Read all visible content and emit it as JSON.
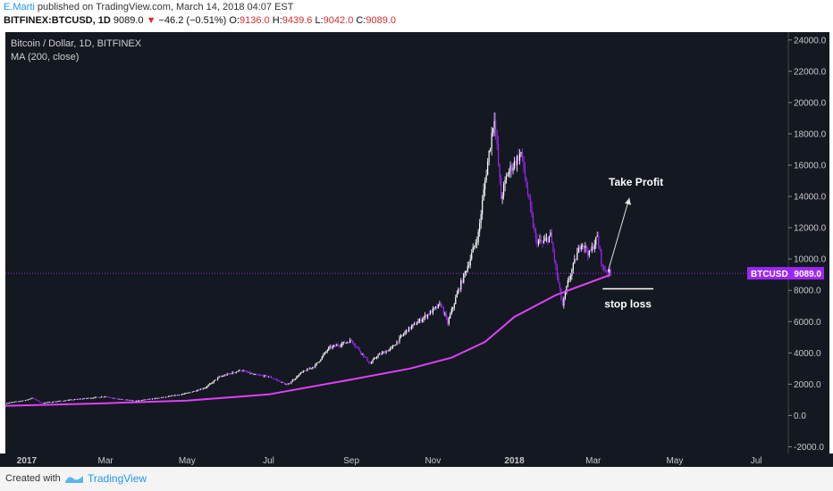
{
  "header": {
    "author": "E.Marti",
    "published_text": "published on TradingView.com, March 14, 2018 04:07 EST",
    "symbol": "BITFINEX:BTCUSD, 1D",
    "last_price": "9089.0",
    "change": "−46.2 (−0.51%)",
    "o_label": "O:",
    "o_value": "9136.0",
    "h_label": "H:",
    "h_value": "9439.6",
    "l_label": "L:",
    "l_value": "9042.0",
    "c_label": "C:",
    "c_value": "9089.0"
  },
  "footer": {
    "created_with": "Created with",
    "brand": "TradingView"
  },
  "colors": {
    "background": "#141821",
    "bull": "#ffffff",
    "bear": "#9c27f5",
    "ma": "#e040fb",
    "price_line": "#9c27f5"
  },
  "chart_data": {
    "type": "candlestick",
    "title": "Bitcoin / Dollar, 1D, BITFINEX",
    "indicator": "MA (200, close)",
    "ylim": [
      -3000,
      24500
    ],
    "yticks": [
      "24000.0",
      "22000.0",
      "20000.0",
      "18000.0",
      "16000.0",
      "14000.0",
      "12000.0",
      "10000.0",
      "8000.0",
      "6000.0",
      "4000.0",
      "2000.0",
      "0.0",
      "-2000.0"
    ],
    "xtick_labels": [
      "2017",
      "Mar",
      "May",
      "Jul",
      "Sep",
      "Nov",
      "2018",
      "Mar",
      "May",
      "Jul"
    ],
    "price_label": "BTCUSD",
    "price_value": "9089.0",
    "price": 9089,
    "price_series": [
      [
        "2016-12-16",
        780
      ],
      [
        "2017-01-01",
        990
      ],
      [
        "2017-01-05",
        1130
      ],
      [
        "2017-01-12",
        800
      ],
      [
        "2017-02-01",
        980
      ],
      [
        "2017-03-01",
        1220
      ],
      [
        "2017-03-10",
        1050
      ],
      [
        "2017-03-24",
        930
      ],
      [
        "2017-04-15",
        1180
      ],
      [
        "2017-05-01",
        1420
      ],
      [
        "2017-05-15",
        1800
      ],
      [
        "2017-05-25",
        2450
      ],
      [
        "2017-06-10",
        2900
      ],
      [
        "2017-06-20",
        2600
      ],
      [
        "2017-07-01",
        2500
      ],
      [
        "2017-07-15",
        1950
      ],
      [
        "2017-07-25",
        2700
      ],
      [
        "2017-08-05",
        3200
      ],
      [
        "2017-08-15",
        4300
      ],
      [
        "2017-09-01",
        4800
      ],
      [
        "2017-09-15",
        3300
      ],
      [
        "2017-09-20",
        3800
      ],
      [
        "2017-10-01",
        4300
      ],
      [
        "2017-10-12",
        5400
      ],
      [
        "2017-10-21",
        6000
      ],
      [
        "2017-11-07",
        7100
      ],
      [
        "2017-11-12",
        5900
      ],
      [
        "2017-11-20",
        8000
      ],
      [
        "2017-11-28",
        9800
      ],
      [
        "2017-12-05",
        11600
      ],
      [
        "2017-12-10",
        15000
      ],
      [
        "2017-12-17",
        19200
      ],
      [
        "2017-12-22",
        13900
      ],
      [
        "2017-12-27",
        15500
      ],
      [
        "2018-01-06",
        16800
      ],
      [
        "2018-01-12",
        13600
      ],
      [
        "2018-01-17",
        11200
      ],
      [
        "2018-01-22",
        11000
      ],
      [
        "2018-01-28",
        11500
      ],
      [
        "2018-02-02",
        8900
      ],
      [
        "2018-02-06",
        7000
      ],
      [
        "2018-02-10",
        8500
      ],
      [
        "2018-02-20",
        11100
      ],
      [
        "2018-02-26",
        10300
      ],
      [
        "2018-03-04",
        11400
      ],
      [
        "2018-03-08",
        9400
      ],
      [
        "2018-03-14",
        9089
      ]
    ],
    "ma_series": [
      [
        "2016-12-16",
        620
      ],
      [
        "2017-03-01",
        780
      ],
      [
        "2017-05-01",
        950
      ],
      [
        "2017-07-01",
        1350
      ],
      [
        "2017-09-01",
        2300
      ],
      [
        "2017-10-15",
        3000
      ],
      [
        "2017-11-15",
        3700
      ],
      [
        "2017-12-10",
        4700
      ],
      [
        "2018-01-01",
        6300
      ],
      [
        "2018-02-01",
        7700
      ],
      [
        "2018-03-14",
        9000
      ]
    ],
    "annotations": [
      {
        "text": "Take Profit",
        "x": "2018-04-02",
        "y": 14700
      },
      {
        "text": "stop loss",
        "x": "2018-03-27",
        "y": 7800
      }
    ]
  }
}
